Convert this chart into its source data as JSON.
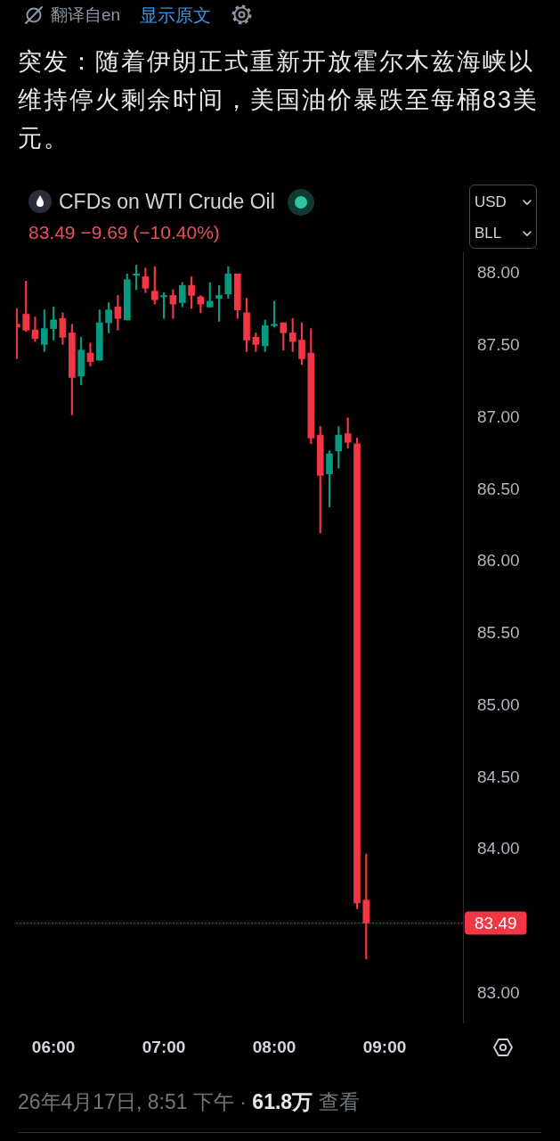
{
  "chart_data": {
    "type": "candlestick",
    "title": "突发：随着伊朗正式重新开放霍尔木兹海峡以维持停火剩余时间，美国油价暴跌至每桶83美元。",
    "subtitle": "CFDs on WTI Crude Oil",
    "annotations": [
      "翻译自en",
      "显示原文",
      "83.49 −9.69 (−10.40%)",
      "USD",
      "BLL",
      "26年4月17日, 8:51 下午 ·",
      "61.8万",
      "查看"
    ],
    "x": [
      5.667,
      5.75,
      5.833,
      5.917,
      6,
      6.083,
      6.167,
      6.25,
      6.333,
      6.417,
      6.5,
      6.583,
      6.667,
      6.75,
      6.833,
      6.917,
      7,
      7.083,
      7.167,
      7.25,
      7.333,
      7.417,
      7.5,
      7.583,
      7.667,
      7.75,
      7.833,
      7.917,
      8,
      8.083,
      8.167,
      8.25,
      8.333,
      8.417,
      8.5,
      8.583,
      8.667,
      8.75,
      8.833
    ],
    "ohlc": [
      [
        87.65,
        87.76,
        87.41,
        87.63
      ],
      [
        87.72,
        87.95,
        87.6,
        87.61
      ],
      [
        87.61,
        87.7,
        87.53,
        87.55
      ],
      [
        87.51,
        87.75,
        87.46,
        87.62
      ],
      [
        87.62,
        87.77,
        87.54,
        87.68
      ],
      [
        87.69,
        87.73,
        87.51,
        87.56
      ],
      [
        87.59,
        87.65,
        87.02,
        87.28
      ],
      [
        87.29,
        87.56,
        87.23,
        87.47
      ],
      [
        87.45,
        87.52,
        87.36,
        87.39
      ],
      [
        87.4,
        87.75,
        87.4,
        87.66
      ],
      [
        87.66,
        87.8,
        87.59,
        87.75
      ],
      [
        87.77,
        87.85,
        87.61,
        87.69
      ],
      [
        87.68,
        88.0,
        87.68,
        87.96
      ],
      [
        87.99,
        88.06,
        87.89,
        88.0
      ],
      [
        87.98,
        88.04,
        87.87,
        87.9
      ],
      [
        87.88,
        88.05,
        87.79,
        87.82
      ],
      [
        87.84,
        87.87,
        87.69,
        87.85
      ],
      [
        87.85,
        87.89,
        87.69,
        87.79
      ],
      [
        87.8,
        87.94,
        87.77,
        87.92
      ],
      [
        87.92,
        87.98,
        87.76,
        87.85
      ],
      [
        87.84,
        87.85,
        87.73,
        87.79
      ],
      [
        87.77,
        87.94,
        87.77,
        87.81
      ],
      [
        87.83,
        87.92,
        87.67,
        87.85
      ],
      [
        87.86,
        88.05,
        87.83,
        88.0
      ],
      [
        88.0,
        88.0,
        87.69,
        87.75
      ],
      [
        87.73,
        87.83,
        87.46,
        87.54
      ],
      [
        87.56,
        87.59,
        87.46,
        87.51
      ],
      [
        87.5,
        87.68,
        87.46,
        87.64
      ],
      [
        87.64,
        87.81,
        87.63,
        87.65
      ],
      [
        87.66,
        87.66,
        87.47,
        87.59
      ],
      [
        87.59,
        87.69,
        87.46,
        87.53
      ],
      [
        87.54,
        87.66,
        87.37,
        87.41
      ],
      [
        87.45,
        87.62,
        86.82,
        86.86
      ],
      [
        86.88,
        86.94,
        86.2,
        86.6
      ],
      [
        86.61,
        86.77,
        86.38,
        86.75
      ],
      [
        86.77,
        86.94,
        86.65,
        86.88
      ],
      [
        86.89,
        87.0,
        86.79,
        86.83
      ],
      [
        86.82,
        86.86,
        83.59,
        83.63
      ],
      [
        83.65,
        83.97,
        83.24,
        83.49
      ]
    ],
    "colors": [
      "#f23645",
      "#f23645",
      "#f23645",
      "#089981",
      "#089981",
      "#f23645",
      "#f23645",
      "#089981",
      "#f23645",
      "#089981",
      "#089981",
      "#f23645",
      "#089981",
      "#089981",
      "#f23645",
      "#f23645",
      "#089981",
      "#f23645",
      "#089981",
      "#f23645",
      "#f23645",
      "#089981",
      "#089981",
      "#089981",
      "#f23645",
      "#f23645",
      "#f23645",
      "#089981",
      "#089981",
      "#f23645",
      "#f23645",
      "#f23645",
      "#f23645",
      "#f23645",
      "#089981",
      "#089981",
      "#f23645",
      "#f23645",
      "#f23645"
    ],
    "xlim": [
      5.66,
      9.71
    ],
    "xticks": [
      {
        "value": 6,
        "label": "06:00"
      },
      {
        "value": 7,
        "label": "07:00"
      },
      {
        "value": 8,
        "label": "08:00"
      },
      {
        "value": 9,
        "label": "09:00"
      }
    ],
    "ylim": [
      82.8,
      88.15
    ],
    "yticks": [
      {
        "value": 83,
        "label": "83.00"
      },
      {
        "value": 84,
        "label": "84.00"
      },
      {
        "value": 84.5,
        "label": "84.50"
      },
      {
        "value": 85,
        "label": "85.00"
      },
      {
        "value": 85.5,
        "label": "85.50"
      },
      {
        "value": 86,
        "label": "86.00"
      },
      {
        "value": 86.5,
        "label": "86.50"
      },
      {
        "value": 87,
        "label": "87.00"
      },
      {
        "value": 87.5,
        "label": "87.50"
      },
      {
        "value": 88,
        "label": "88.00"
      }
    ],
    "ref_lines": [
      {
        "axis": "y",
        "value": 83.49,
        "label": "83.49",
        "color": "#f23645",
        "line_style": "dotted"
      }
    ]
  }
}
